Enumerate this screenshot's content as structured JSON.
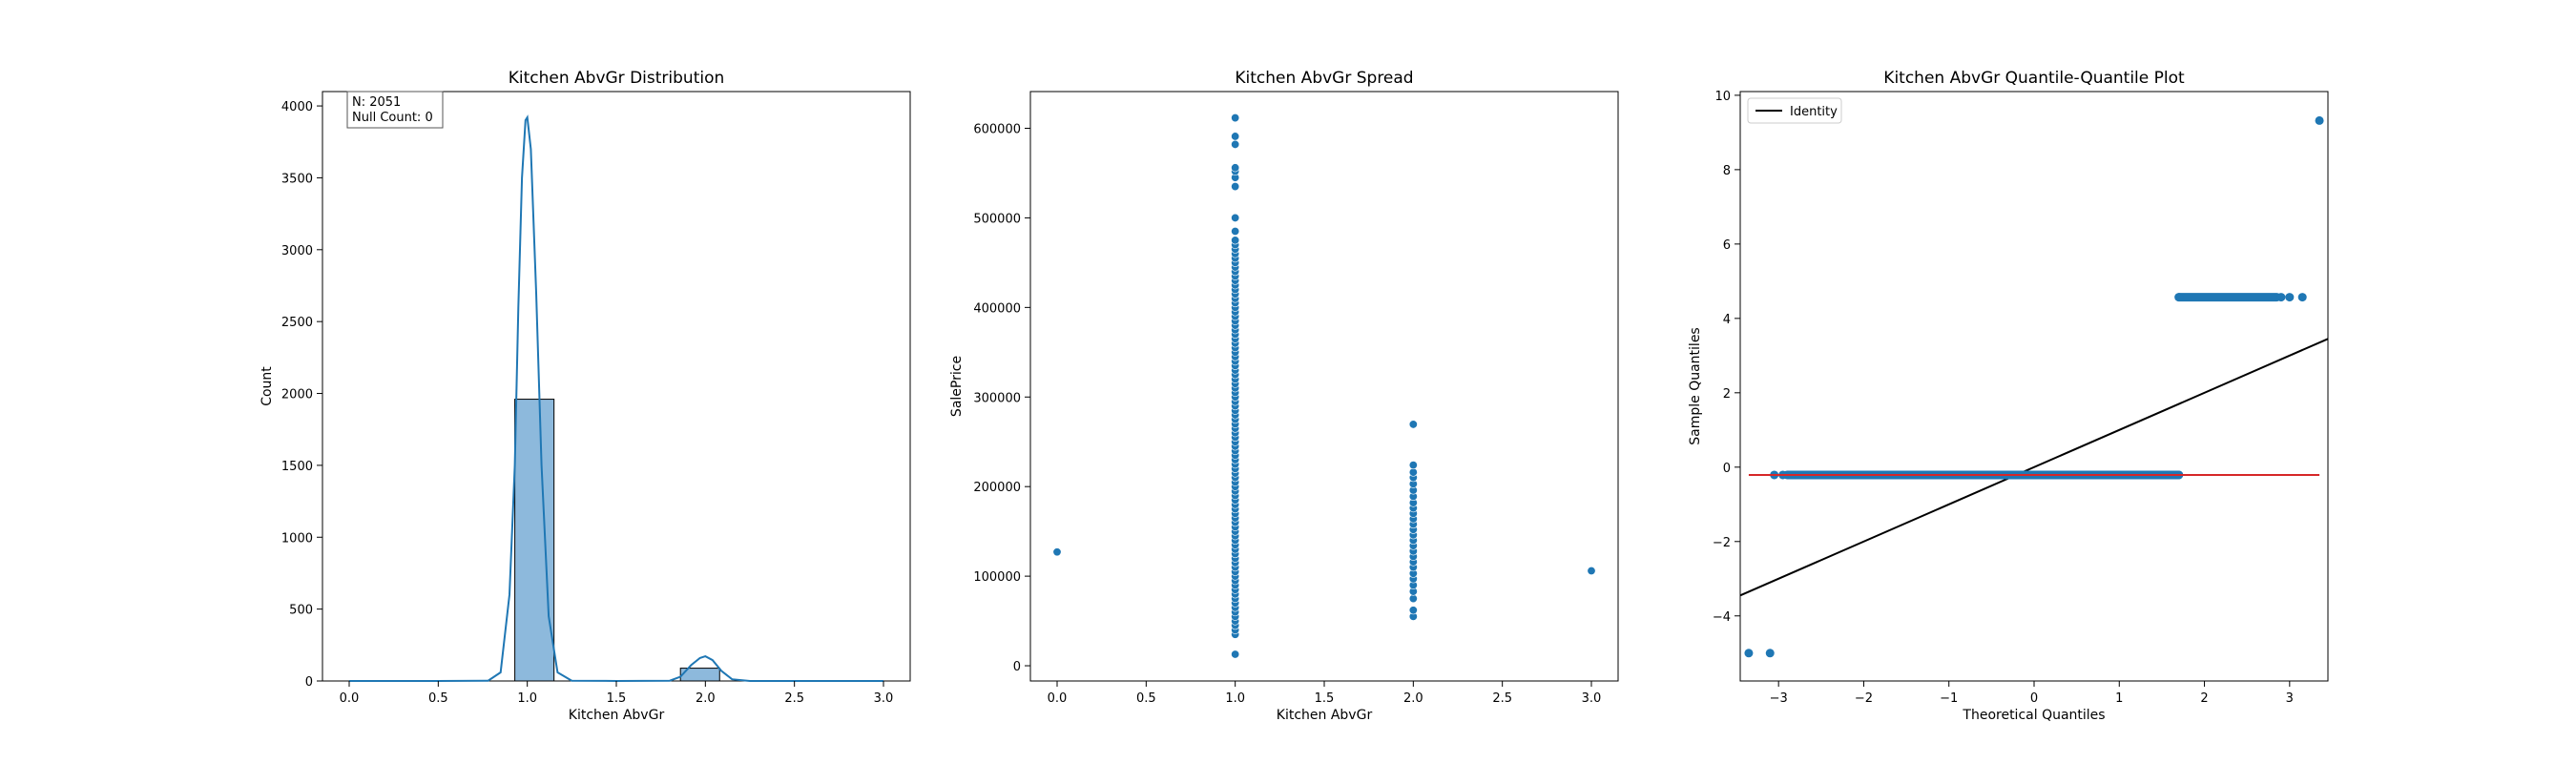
{
  "chart_data": [
    {
      "type": "histogram",
      "title": "Kitchen AbvGr Distribution",
      "xlabel": "Kitchen AbvGr",
      "ylabel": "Count",
      "xlim": [
        -0.15,
        3.15
      ],
      "ylim": [
        0,
        4100
      ],
      "xticks": [
        0.0,
        0.5,
        1.0,
        1.5,
        2.0,
        2.5,
        3.0
      ],
      "xtick_labels": [
        "0.0",
        "0.5",
        "1.0",
        "1.5",
        "2.0",
        "2.5",
        "3.0"
      ],
      "yticks": [
        0,
        500,
        1000,
        1500,
        2000,
        2500,
        3000,
        3500,
        4000
      ],
      "ytick_labels": [
        "0",
        "500",
        "1000",
        "1500",
        "2000",
        "2500",
        "3000",
        "3500",
        "4000"
      ],
      "bars": [
        {
          "x0": 0.93,
          "x1": 1.15,
          "count": 1960
        },
        {
          "x0": 1.86,
          "x1": 2.08,
          "count": 89
        }
      ],
      "kde": [
        [
          0.0,
          0
        ],
        [
          0.5,
          0
        ],
        [
          0.78,
          2
        ],
        [
          0.85,
          60
        ],
        [
          0.9,
          600
        ],
        [
          0.93,
          1500
        ],
        [
          0.95,
          2600
        ],
        [
          0.97,
          3500
        ],
        [
          0.99,
          3900
        ],
        [
          1.0,
          3920
        ],
        [
          1.02,
          3700
        ],
        [
          1.05,
          2700
        ],
        [
          1.08,
          1500
        ],
        [
          1.12,
          450
        ],
        [
          1.17,
          60
        ],
        [
          1.25,
          2
        ],
        [
          1.5,
          0
        ],
        [
          1.8,
          2
        ],
        [
          1.86,
          30
        ],
        [
          1.92,
          110
        ],
        [
          1.97,
          160
        ],
        [
          2.0,
          172
        ],
        [
          2.04,
          145
        ],
        [
          2.09,
          70
        ],
        [
          2.15,
          12
        ],
        [
          2.25,
          0
        ],
        [
          3.0,
          0
        ]
      ],
      "annotation": [
        "N: 2051",
        "Null Count: 0"
      ],
      "color": "#1f77b4",
      "bar_fill": "#8db9dc"
    },
    {
      "type": "scatter",
      "title": "Kitchen AbvGr Spread",
      "xlabel": "Kitchen AbvGr",
      "ylabel": "SalePrice",
      "xlim": [
        -0.15,
        3.15
      ],
      "ylim": [
        -17000,
        641000
      ],
      "xticks": [
        0.0,
        0.5,
        1.0,
        1.5,
        2.0,
        2.5,
        3.0
      ],
      "xtick_labels": [
        "0.0",
        "0.5",
        "1.0",
        "1.5",
        "2.0",
        "2.5",
        "3.0"
      ],
      "yticks": [
        0,
        100000,
        200000,
        300000,
        400000,
        500000,
        600000
      ],
      "ytick_labels": [
        "0",
        "100000",
        "200000",
        "300000",
        "400000",
        "500000",
        "600000"
      ],
      "points": [
        [
          0,
          127000
        ],
        [
          1,
          12789
        ],
        [
          1,
          34900
        ],
        [
          1,
          40000
        ],
        [
          1,
          45000
        ],
        [
          1,
          50000
        ],
        [
          1,
          55000
        ],
        [
          1,
          60000
        ],
        [
          1,
          65000
        ],
        [
          1,
          70000
        ],
        [
          1,
          75000
        ],
        [
          1,
          80000
        ],
        [
          1,
          85000
        ],
        [
          1,
          90000
        ],
        [
          1,
          95000
        ],
        [
          1,
          100000
        ],
        [
          1,
          105000
        ],
        [
          1,
          110000
        ],
        [
          1,
          115000
        ],
        [
          1,
          120000
        ],
        [
          1,
          125000
        ],
        [
          1,
          130000
        ],
        [
          1,
          135000
        ],
        [
          1,
          140000
        ],
        [
          1,
          145000
        ],
        [
          1,
          150000
        ],
        [
          1,
          155000
        ],
        [
          1,
          160000
        ],
        [
          1,
          165000
        ],
        [
          1,
          170000
        ],
        [
          1,
          175000
        ],
        [
          1,
          180000
        ],
        [
          1,
          185000
        ],
        [
          1,
          190000
        ],
        [
          1,
          195000
        ],
        [
          1,
          200000
        ],
        [
          1,
          205000
        ],
        [
          1,
          210000
        ],
        [
          1,
          215000
        ],
        [
          1,
          220000
        ],
        [
          1,
          225000
        ],
        [
          1,
          230000
        ],
        [
          1,
          235000
        ],
        [
          1,
          240000
        ],
        [
          1,
          245000
        ],
        [
          1,
          250000
        ],
        [
          1,
          255000
        ],
        [
          1,
          260000
        ],
        [
          1,
          265000
        ],
        [
          1,
          270000
        ],
        [
          1,
          275000
        ],
        [
          1,
          280000
        ],
        [
          1,
          285000
        ],
        [
          1,
          290000
        ],
        [
          1,
          295000
        ],
        [
          1,
          300000
        ],
        [
          1,
          305000
        ],
        [
          1,
          310000
        ],
        [
          1,
          315000
        ],
        [
          1,
          320000
        ],
        [
          1,
          325000
        ],
        [
          1,
          330000
        ],
        [
          1,
          335000
        ],
        [
          1,
          340000
        ],
        [
          1,
          345000
        ],
        [
          1,
          350000
        ],
        [
          1,
          355000
        ],
        [
          1,
          360000
        ],
        [
          1,
          365000
        ],
        [
          1,
          370000
        ],
        [
          1,
          375000
        ],
        [
          1,
          380000
        ],
        [
          1,
          385000
        ],
        [
          1,
          390000
        ],
        [
          1,
          395000
        ],
        [
          1,
          400000
        ],
        [
          1,
          405000
        ],
        [
          1,
          410000
        ],
        [
          1,
          415000
        ],
        [
          1,
          420000
        ],
        [
          1,
          425000
        ],
        [
          1,
          430000
        ],
        [
          1,
          435000
        ],
        [
          1,
          440000
        ],
        [
          1,
          445000
        ],
        [
          1,
          450000
        ],
        [
          1,
          455000
        ],
        [
          1,
          460000
        ],
        [
          1,
          465000
        ],
        [
          1,
          470000
        ],
        [
          1,
          475000
        ],
        [
          1,
          485000
        ],
        [
          1,
          500000
        ],
        [
          1,
          535000
        ],
        [
          1,
          545000
        ],
        [
          1,
          552000
        ],
        [
          1,
          556000
        ],
        [
          1,
          582000
        ],
        [
          1,
          591000
        ],
        [
          1,
          611657
        ],
        [
          2,
          55000
        ],
        [
          2,
          62000
        ],
        [
          2,
          75000
        ],
        [
          2,
          83000
        ],
        [
          2,
          90000
        ],
        [
          2,
          97000
        ],
        [
          2,
          103000
        ],
        [
          2,
          110000
        ],
        [
          2,
          116000
        ],
        [
          2,
          122000
        ],
        [
          2,
          128000
        ],
        [
          2,
          134000
        ],
        [
          2,
          140000
        ],
        [
          2,
          146000
        ],
        [
          2,
          152000
        ],
        [
          2,
          158000
        ],
        [
          2,
          164000
        ],
        [
          2,
          170000
        ],
        [
          2,
          176000
        ],
        [
          2,
          182000
        ],
        [
          2,
          189000
        ],
        [
          2,
          196000
        ],
        [
          2,
          203000
        ],
        [
          2,
          210000
        ],
        [
          2,
          216000
        ],
        [
          2,
          224000
        ],
        [
          2,
          269500
        ],
        [
          3,
          106000
        ]
      ],
      "color": "#1f77b4"
    },
    {
      "type": "scatter",
      "title": "Kitchen AbvGr Quantile-Quantile Plot",
      "xlabel": "Theoretical Quantiles",
      "ylabel": "Sample Quantiles",
      "xlim": [
        -3.45,
        3.45
      ],
      "ylim": [
        -5.75,
        10.1
      ],
      "xticks": [
        -3,
        -2,
        -1,
        0,
        1,
        2,
        3
      ],
      "xtick_labels": [
        "−3",
        "−2",
        "−1",
        "0",
        "1",
        "2",
        "3"
      ],
      "yticks": [
        -4,
        -2,
        0,
        2,
        4,
        6,
        8,
        10
      ],
      "ytick_labels": [
        "−4",
        "−2",
        "0",
        "2",
        "4",
        "6",
        "8",
        "10"
      ],
      "legend": [
        "Identity"
      ],
      "legend_loc": "upper left",
      "identity_line": [
        [
          -3.45,
          -3.45
        ],
        [
          3.45,
          3.45
        ]
      ],
      "fit_line": [
        [
          -3.35,
          -0.21
        ],
        [
          3.35,
          -0.21
        ]
      ],
      "segments": [
        {
          "y": -0.21,
          "x_start": -2.9,
          "x_end": 1.7
        },
        {
          "y": 4.57,
          "x_start": 1.7,
          "x_end": 2.85
        }
      ],
      "points": [
        [
          -3.35,
          -5.0
        ],
        [
          -3.1,
          -5.0
        ],
        [
          -3.05,
          -0.21
        ],
        [
          -2.95,
          -0.21
        ],
        [
          -2.85,
          -0.21
        ],
        [
          1.7,
          -0.21
        ],
        [
          1.7,
          4.57
        ],
        [
          2.9,
          4.57
        ],
        [
          3.0,
          4.57
        ],
        [
          3.15,
          4.57
        ],
        [
          3.35,
          9.32
        ]
      ],
      "color": "#1f77b4",
      "identity_color": "#000000",
      "fit_color": "#d62728"
    }
  ]
}
